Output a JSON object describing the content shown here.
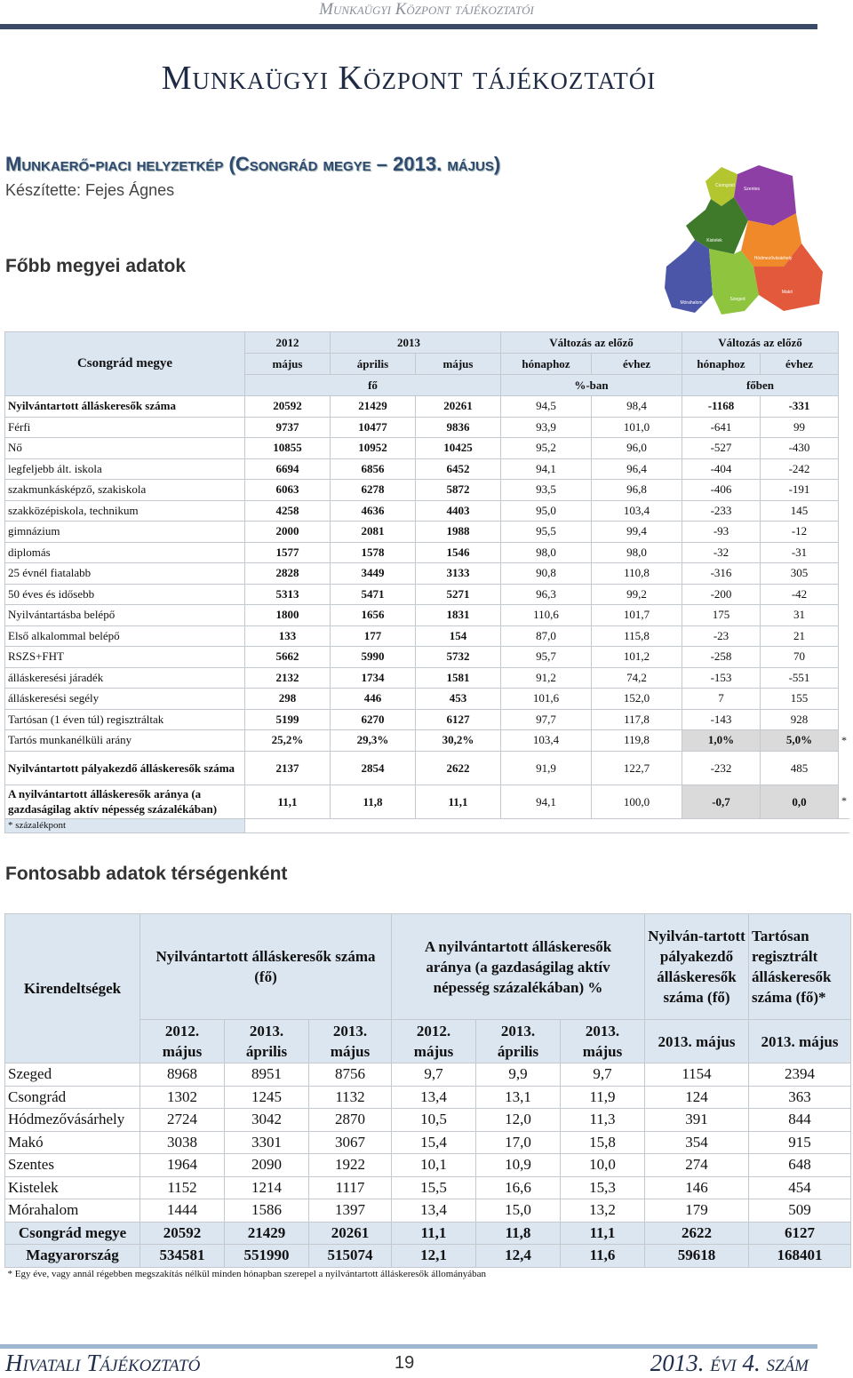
{
  "header": {
    "running_title": "Munkaügyi Központ tájékoztatói",
    "title": "Munkaügyi Központ tájékoztatói"
  },
  "section": {
    "title": "Munkaerő-piaci helyzetkép (Csongrád megye – 2013. május)",
    "author": "Készítette: Fejes Ágnes"
  },
  "map": {
    "labels": [
      "Csongrád",
      "Szentes",
      "Kistelek",
      "Hódmezővásárhely",
      "Mórahalom",
      "Szeged",
      "Makó"
    ]
  },
  "heading1": "Főbb megyei adatok",
  "table1": {
    "header": {
      "corner": "Csongrád megye",
      "years": [
        "2012",
        "2013"
      ],
      "change": [
        "Változás az előző",
        "Változás az előző"
      ],
      "periods": [
        "május",
        "április",
        "május",
        "hónaphoz",
        "évhez",
        "hónaphoz",
        "évhez"
      ],
      "units": [
        "fő",
        "%-ban",
        "főben"
      ]
    },
    "rows": [
      {
        "label": "Nyilvántartott álláskeresők száma",
        "values": [
          "20592",
          "21429",
          "20261",
          "94,5",
          "98,4",
          "-1168",
          "-331"
        ]
      },
      {
        "label": "Férfi",
        "values": [
          "9737",
          "10477",
          "9836",
          "93,9",
          "101,0",
          "-641",
          "99"
        ]
      },
      {
        "label": "Nő",
        "values": [
          "10855",
          "10952",
          "10425",
          "95,2",
          "96,0",
          "-527",
          "-430"
        ]
      },
      {
        "label": "legfeljebb ált. iskola",
        "values": [
          "6694",
          "6856",
          "6452",
          "94,1",
          "96,4",
          "-404",
          "-242"
        ]
      },
      {
        "label": "szakmunkásképző, szakiskola",
        "values": [
          "6063",
          "6278",
          "5872",
          "93,5",
          "96,8",
          "-406",
          "-191"
        ]
      },
      {
        "label": "szakközépiskola, technikum",
        "values": [
          "4258",
          "4636",
          "4403",
          "95,0",
          "103,4",
          "-233",
          "145"
        ]
      },
      {
        "label": "gimnázium",
        "values": [
          "2000",
          "2081",
          "1988",
          "95,5",
          "99,4",
          "-93",
          "-12"
        ]
      },
      {
        "label": "diplomás",
        "values": [
          "1577",
          "1578",
          "1546",
          "98,0",
          "98,0",
          "-32",
          "-31"
        ]
      },
      {
        "label": "25 évnél fiatalabb",
        "values": [
          "2828",
          "3449",
          "3133",
          "90,8",
          "110,8",
          "-316",
          "305"
        ]
      },
      {
        "label": "50 éves és idősebb",
        "values": [
          "5313",
          "5471",
          "5271",
          "96,3",
          "99,2",
          "-200",
          "-42"
        ]
      },
      {
        "label": "Nyilvántartásba belépő",
        "values": [
          "1800",
          "1656",
          "1831",
          "110,6",
          "101,7",
          "175",
          "31"
        ]
      },
      {
        "label": "Első alkalommal belépő",
        "values": [
          "133",
          "177",
          "154",
          "87,0",
          "115,8",
          "-23",
          "21"
        ]
      },
      {
        "label": "RSZS+FHT",
        "values": [
          "5662",
          "5990",
          "5732",
          "95,7",
          "101,2",
          "-258",
          "70"
        ]
      },
      {
        "label": "álláskeresési járadék",
        "values": [
          "2132",
          "1734",
          "1581",
          "91,2",
          "74,2",
          "-153",
          "-551"
        ]
      },
      {
        "label": "álláskeresési segély",
        "values": [
          "298",
          "446",
          "453",
          "101,6",
          "152,0",
          "7",
          "155"
        ]
      },
      {
        "label": "Tartósan (1 éven túl) regisztráltak",
        "values": [
          "5199",
          "6270",
          "6127",
          "97,7",
          "117,8",
          "-143",
          "928"
        ]
      },
      {
        "label": "Tartós munkanélküli arány",
        "values": [
          "25,2%",
          "29,3%",
          "30,2%",
          "103,4",
          "119,8",
          "1,0%",
          "5,0%"
        ],
        "note": "*"
      },
      {
        "label": "Nyilvántartott pályakezdő álláskeresők száma",
        "values": [
          "2137",
          "2854",
          "2622",
          "91,9",
          "122,7",
          "-232",
          "485"
        ]
      },
      {
        "label": "A nyilvántartott álláskeresők aránya (a gazdaságilag aktív népesség százalékában)",
        "values": [
          "11,1",
          "11,8",
          "11,1",
          "94,1",
          "100,0",
          "-0,7",
          "0,0"
        ],
        "note": "*"
      }
    ],
    "footnote": "* százalékpont"
  },
  "heading2": "Fontosabb adatok térségenként",
  "table2": {
    "header": {
      "corner": "Kirendeltségek",
      "groups": [
        "Nyilvántartott álláskeresők száma (fő)",
        "A nyilvántartott álláskeresők aránya (a gazdaságilag aktív népesség százalékában) %",
        "Nyilván-tartott pályakezdő álláskeresők száma (fő)",
        "Tartósan regisztrált álláskeresők száma (fő)*"
      ],
      "periods": [
        "2012. május",
        "2013. április",
        "2013. május",
        "2012. május",
        "2013. április",
        "2013. május",
        "2013. május",
        "2013. május"
      ]
    },
    "rows": [
      {
        "label": "Szeged",
        "values": [
          "8968",
          "8951",
          "8756",
          "9,7",
          "9,9",
          "9,7",
          "1154",
          "2394"
        ]
      },
      {
        "label": "Csongrád",
        "values": [
          "1302",
          "1245",
          "1132",
          "13,4",
          "13,1",
          "11,9",
          "124",
          "363"
        ]
      },
      {
        "label": "Hódmezővásárhely",
        "values": [
          "2724",
          "3042",
          "2870",
          "10,5",
          "12,0",
          "11,3",
          "391",
          "844"
        ]
      },
      {
        "label": "Makó",
        "values": [
          "3038",
          "3301",
          "3067",
          "15,4",
          "17,0",
          "15,8",
          "354",
          "915"
        ]
      },
      {
        "label": "Szentes",
        "values": [
          "1964",
          "2090",
          "1922",
          "10,1",
          "10,9",
          "10,0",
          "274",
          "648"
        ]
      },
      {
        "label": "Kistelek",
        "values": [
          "1152",
          "1214",
          "1117",
          "15,5",
          "16,6",
          "15,3",
          "146",
          "454"
        ]
      },
      {
        "label": "Mórahalom",
        "values": [
          "1444",
          "1586",
          "1397",
          "13,4",
          "15,0",
          "13,2",
          "179",
          "509"
        ]
      },
      {
        "label": "Csongrád megye",
        "values": [
          "20592",
          "21429",
          "20261",
          "11,1",
          "11,8",
          "11,1",
          "2622",
          "6127"
        ]
      },
      {
        "label": "Magyarország",
        "values": [
          "534581",
          "551990",
          "515074",
          "12,1",
          "12,4",
          "11,6",
          "59618",
          "168401"
        ]
      }
    ],
    "footnote": "* Egy éve, vagy annál régebben megszakítás nélkül minden hónapban szerepel a nyilvántartott álláskeresők állományában"
  },
  "footer": {
    "left": "Hivatali Tájékoztató",
    "page": "19",
    "right": "2013. évi 4. szám"
  }
}
